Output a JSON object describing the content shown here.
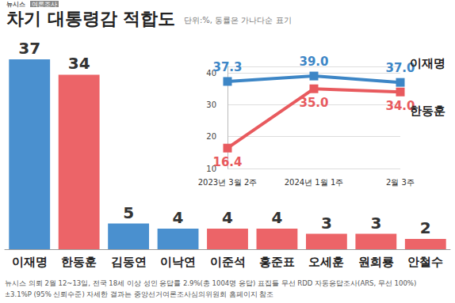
{
  "chart_data": [
    {
      "type": "bar",
      "title": "차기 대통령감 적합도",
      "subtitle": "단위:%, 동률은 가나다순 표기",
      "annotations": [
        "뉴시스",
        "여론조사",
        "뉴시스 의뢰 2월 12~13일, 전국 18세 이상 성인 응답률 2.9%(총 1004명 응답) 표집틀 무선 RDD 자동응답조사(ARS, 무선 100%)",
        "±3.1%P (95% 신뢰수준) 자세한 결과는 중앙선거여론조사심의위원회 홈페이지 참조"
      ],
      "categories": [
        "이재명",
        "한동훈",
        "김동연",
        "이낙연",
        "이준석",
        "홍준표",
        "오세훈",
        "원희룡",
        "안철수"
      ],
      "values": [
        37,
        34,
        5,
        4,
        4,
        4,
        3,
        3,
        2
      ],
      "colors": [
        "#4a90cf",
        "#ec6468",
        "#4a90cf",
        "#4a90cf",
        "#ec6468",
        "#ec6468",
        "#ec6468",
        "#ec6468",
        "#ec6468"
      ],
      "ylim": [
        0,
        37
      ],
      "data_labels": true,
      "tick_labels": "x",
      "grid": false
    },
    {
      "type": "line",
      "categories": [
        "2023년 3월 2주",
        "2024년 1월 1주",
        "2월 3주"
      ],
      "series": [
        {
          "name": "이재명",
          "color": "#3d86c6",
          "values": [
            37.3,
            39.0,
            37.0
          ],
          "value_labels": [
            "37.3",
            "39.0",
            "37.0"
          ],
          "marker": "square"
        },
        {
          "name": "한동훈",
          "color": "#e85a5e",
          "values": [
            16.4,
            35.0,
            34.0
          ],
          "value_labels": [
            "16.4",
            "35.0",
            "34.0"
          ],
          "marker": "square"
        }
      ],
      "ylim": [
        10,
        42
      ],
      "yticks": [
        10,
        20,
        30,
        40
      ],
      "data_labels": true,
      "grid": true
    }
  ]
}
